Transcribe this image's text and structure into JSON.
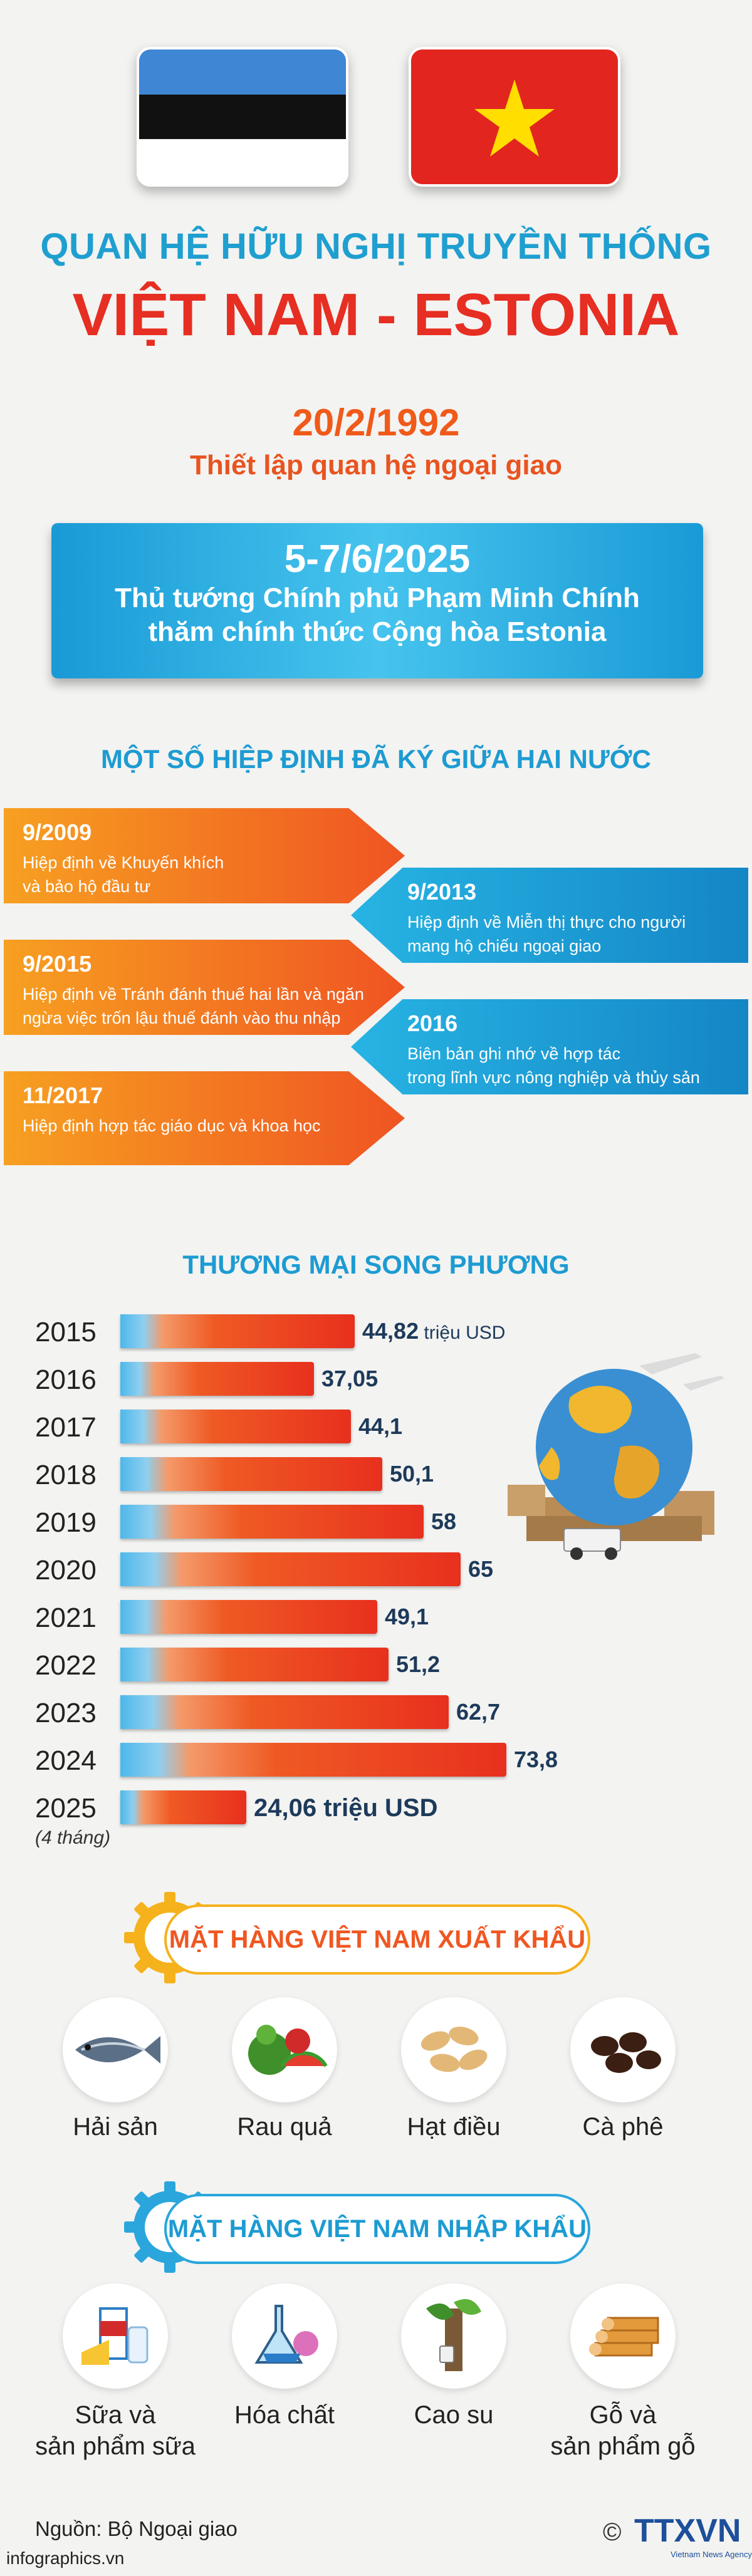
{
  "header": {
    "line1": "QUAN HỆ HỮU NGHỊ TRUYỀN THỐNG",
    "line2": "VIỆT NAM - ESTONIA"
  },
  "establish": {
    "date": "20/2/1992",
    "label": "Thiết lập quan hệ ngoại giao"
  },
  "visit": {
    "date": "5-7/6/2025",
    "line1": "Thủ tướng Chính phủ Phạm Minh Chính",
    "line2": "thăm chính thức Cộng hòa Estonia"
  },
  "agreements": {
    "title": "MỘT SỐ HIỆP ĐỊNH ĐÃ KÝ GIỮA HAI NƯỚC",
    "items": [
      {
        "year": "9/2009",
        "text1": "Hiệp định về Khuyến khích",
        "text2": "và bảo hộ đầu tư"
      },
      {
        "year": "9/2013",
        "text1": "Hiệp định về Miễn thị thực cho người",
        "text2": "mang hộ chiếu ngoại giao"
      },
      {
        "year": "9/2015",
        "text1": "Hiệp định về Tránh đánh thuế hai lần và ngăn",
        "text2": "ngừa việc trốn lậu thuế đánh vào thu nhập"
      },
      {
        "year": "2016",
        "text1": "Biên bản ghi nhớ về hợp tác",
        "text2": "trong lĩnh vực nông nghiệp và thủy sản"
      },
      {
        "year": "11/2017",
        "text1": "Hiệp định hợp tác giáo dục và khoa học",
        "text2": ""
      }
    ]
  },
  "trade": {
    "title": "THƯƠNG MẠI SONG PHƯƠNG",
    "unit": "triệu USD",
    "note_2025": "(4 tháng)"
  },
  "chart_data": {
    "type": "bar",
    "orientation": "horizontal",
    "categories": [
      "2015",
      "2016",
      "2017",
      "2018",
      "2019",
      "2020",
      "2021",
      "2022",
      "2023",
      "2024",
      "2025"
    ],
    "values": [
      44.82,
      37.05,
      44.1,
      50.1,
      58,
      65,
      49.1,
      51.2,
      62.7,
      73.8,
      24.06
    ],
    "labels": [
      "44,82",
      "37,05",
      "44,1",
      "50,1",
      "58",
      "65",
      "49,1",
      "51,2",
      "62,7",
      "73,8",
      "24,06"
    ],
    "unit": "triệu USD"
  },
  "exports": {
    "title": "MẶT HÀNG VIỆT NAM XUẤT KHẨU",
    "items": [
      {
        "label1": "Hải sản",
        "label2": "",
        "icon": "fish-icon"
      },
      {
        "label1": "Rau quả",
        "label2": "",
        "icon": "vegetables-icon"
      },
      {
        "label1": "Hạt điều",
        "label2": "",
        "icon": "cashew-icon"
      },
      {
        "label1": "Cà phê",
        "label2": "",
        "icon": "coffee-icon"
      }
    ]
  },
  "imports": {
    "title": "MẶT HÀNG VIỆT NAM NHẬP KHẨU",
    "items": [
      {
        "label1": "Sữa và",
        "label2": "sản phẩm sữa",
        "icon": "milk-icon"
      },
      {
        "label1": "Hóa chất",
        "label2": "",
        "icon": "chemical-flask-icon"
      },
      {
        "label1": "Cao su",
        "label2": "",
        "icon": "rubber-tree-icon"
      },
      {
        "label1": "Gỗ và",
        "label2": "sản phẩm gỗ",
        "icon": "wood-icon"
      }
    ]
  },
  "footer": {
    "source": "Nguồn: Bộ Ngoại giao",
    "site": "infographics.vn",
    "copyright": "©",
    "brand": "TTXVN",
    "brand_sub": "Vietnam News Agency"
  },
  "colors": {
    "accent_blue": "#1d9bd2",
    "accent_red": "#e62e22",
    "accent_orange": "#f05a1a"
  }
}
